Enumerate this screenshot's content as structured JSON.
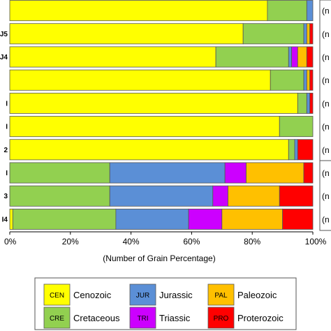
{
  "chart_data": {
    "type": "bar",
    "orientation": "horizontal",
    "stacked": true,
    "categories": [
      "",
      "J5",
      "J4",
      "",
      "I",
      "I",
      "2",
      "I",
      "3",
      "I4"
    ],
    "series": [
      {
        "name": "Cenozoic",
        "code": "CEN",
        "color": "#ffff00",
        "values": [
          85,
          77,
          68,
          86,
          95,
          89,
          92,
          0,
          0,
          1
        ]
      },
      {
        "name": "Cretaceous",
        "code": "CRE",
        "color": "#92d050",
        "values": [
          13,
          20,
          24,
          11,
          3,
          11,
          2,
          33,
          33,
          34
        ]
      },
      {
        "name": "Jurassic",
        "code": "JUR",
        "color": "#5b8fd6",
        "values": [
          2,
          1,
          1,
          1,
          1,
          0,
          1,
          38,
          34,
          24
        ]
      },
      {
        "name": "Triassic",
        "code": "TRI",
        "color": "#cc00ff",
        "values": [
          0,
          0,
          2,
          0,
          0,
          0,
          0,
          7,
          5,
          11
        ]
      },
      {
        "name": "Paleozoic",
        "code": "PAL",
        "color": "#ffc000",
        "values": [
          0,
          1,
          3,
          1,
          0,
          0,
          0,
          19,
          17,
          20
        ]
      },
      {
        "name": "Proterozoic",
        "code": "PRO",
        "color": "#ff0000",
        "values": [
          0,
          1,
          2,
          1,
          1,
          0,
          5,
          3,
          11,
          10
        ]
      }
    ],
    "xlabel": "(Number of Grain Percentage)",
    "xlim": [
      0,
      100
    ],
    "xticks": [
      "0%",
      "20%",
      "40%",
      "60%",
      "80%",
      "100%"
    ],
    "side_labels": [
      "(n",
      "(n",
      "(n",
      "(n",
      "(n",
      "(n",
      "(n",
      "(n",
      "(n",
      "(n"
    ],
    "legend": {
      "placement": "bottom",
      "columns": 3
    }
  }
}
